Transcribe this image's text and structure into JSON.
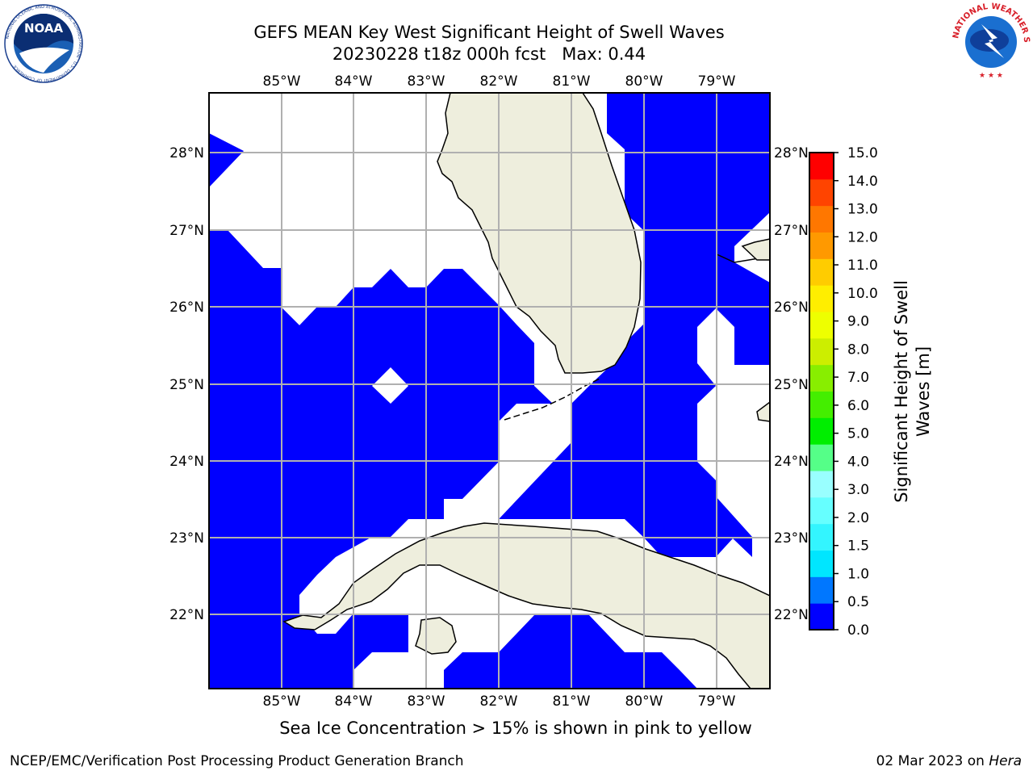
{
  "header": {
    "title_line1": "GEFS MEAN Key West Significant Height of Swell Waves",
    "title_line2": "20230228 t18z 000h fcst   Max: 0.44"
  },
  "logos": {
    "left": {
      "text": "NOAA",
      "ring_text": "NATIONAL OCEANIC AND ATMOSPHERIC ADMINISTRATION · U.S. DEPARTMENT OF COMMERCE"
    },
    "right": {
      "ring_text": "NATIONAL WEATHER SERVICE"
    }
  },
  "map": {
    "lon_labels": [
      "85°W",
      "84°W",
      "83°W",
      "82°W",
      "81°W",
      "80°W",
      "79°W"
    ],
    "lat_labels": [
      "28°N",
      "27°N",
      "26°N",
      "25°N",
      "24°N",
      "23°N",
      "22°N"
    ],
    "colors": {
      "ocean_field": "#0000ff",
      "land": "#eeeedd",
      "grid": "#b0b0b0"
    }
  },
  "colorbar": {
    "title_line1": "Significant Height of Swell",
    "title_line2": "Waves [m]",
    "tick_labels": [
      "0.0",
      "0.5",
      "1.0",
      "1.5",
      "2.0",
      "3.0",
      "4.0",
      "5.0",
      "6.0",
      "7.0",
      "8.0",
      "9.0",
      "10.0",
      "11.0",
      "12.0",
      "13.0",
      "14.0",
      "15.0"
    ],
    "colors": [
      "#0000ff",
      "#0077ff",
      "#00e6ff",
      "#33f5ff",
      "#66ffff",
      "#99ffff",
      "#55ff88",
      "#00ee00",
      "#44ee00",
      "#88ee00",
      "#ccee00",
      "#eeff00",
      "#ffee00",
      "#ffcc00",
      "#ff9900",
      "#ff7700",
      "#ff4400",
      "#ff0000"
    ]
  },
  "caption": "Sea Ice Concentration > 15% is shown in pink to yellow",
  "footer": {
    "left": "NCEP/EMC/Verification Post Processing Product Generation Branch",
    "right_date": "02 Mar 2023 on ",
    "right_machine": "Hera"
  }
}
